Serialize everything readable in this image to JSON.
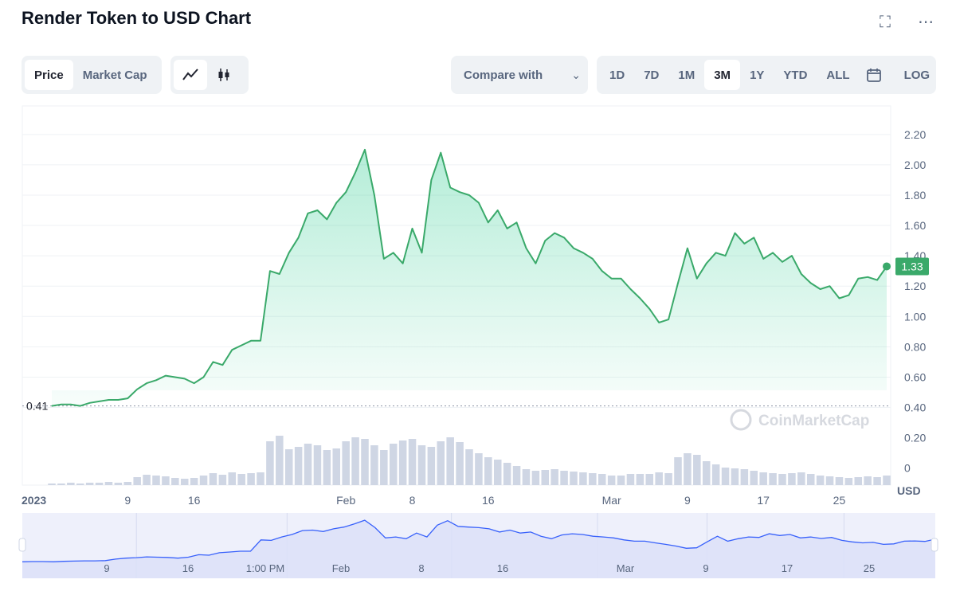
{
  "title": "Render Token to USD Chart",
  "icons": {
    "fullscreen": "fullscreen-icon",
    "more": "more-horizontal-icon"
  },
  "toolbar": {
    "metric_tabs": [
      "Price",
      "Market Cap"
    ],
    "metric_selected": "Price",
    "chart_style_icons": [
      "line-chart-icon",
      "candlestick-icon"
    ],
    "compare_label": "Compare with",
    "ranges": [
      "1D",
      "7D",
      "1M",
      "3M",
      "1Y",
      "YTD",
      "ALL"
    ],
    "range_selected": "3M",
    "calendar_icon": "calendar-icon",
    "log_label": "LOG"
  },
  "colors": {
    "line": "#16c784",
    "line_dark": "#3aa96a",
    "volume": "#cfd6e4",
    "brush_fill": "#dde1f8",
    "brush_line": "#3861fb",
    "current_badge": "#3aa96a"
  },
  "watermark": "CoinMarketCap",
  "chart_data": {
    "type": "line",
    "title": "",
    "xlabel": "",
    "ylabel": "USD",
    "ylim": [
      0,
      2.3
    ],
    "yticks": [
      0.4,
      0.6,
      0.8,
      1.0,
      1.2,
      1.4,
      1.6,
      1.8,
      2.0,
      2.2
    ],
    "ytick_labels": [
      "0.40",
      "0.60",
      "0.80",
      "1.00",
      "1.20",
      "1.40",
      "1.60",
      "1.80",
      "2.00",
      "2.20"
    ],
    "volume_axis_labels": [
      "0.20",
      "0"
    ],
    "xtick_labels": [
      {
        "label": "2023",
        "day": 0
      },
      {
        "label": "9",
        "day": 8
      },
      {
        "label": "16",
        "day": 15
      },
      {
        "label": "Feb",
        "day": 31
      },
      {
        "label": "8",
        "day": 38
      },
      {
        "label": "16",
        "day": 46
      },
      {
        "label": "Mar",
        "day": 59
      },
      {
        "label": "9",
        "day": 67
      },
      {
        "label": "17",
        "day": 75
      },
      {
        "label": "25",
        "day": 83
      }
    ],
    "start_price_label": "0.41",
    "current_price_label": "1.33",
    "series": [
      {
        "x": [
          0,
          1,
          2,
          3,
          4,
          5,
          6,
          7,
          8,
          9,
          10,
          11,
          12,
          13,
          14,
          15,
          16,
          17,
          18,
          19,
          20,
          21,
          22,
          23,
          24,
          25,
          26,
          27,
          28,
          29,
          30,
          31,
          32,
          33,
          34,
          35,
          36,
          37,
          38,
          39,
          40,
          41,
          42,
          43,
          44,
          45,
          46,
          47,
          48,
          49,
          50,
          51,
          52,
          53,
          54,
          55,
          56,
          57,
          58,
          59,
          60,
          61,
          62,
          63,
          64,
          65,
          66,
          67,
          68,
          69,
          70,
          71,
          72,
          73,
          74,
          75,
          76,
          77,
          78,
          79,
          80,
          81,
          82,
          83,
          84,
          85,
          86,
          87,
          88
        ],
        "values": [
          0.41,
          0.42,
          0.42,
          0.41,
          0.43,
          0.44,
          0.45,
          0.45,
          0.46,
          0.52,
          0.56,
          0.58,
          0.61,
          0.6,
          0.59,
          0.56,
          0.6,
          0.7,
          0.68,
          0.78,
          0.81,
          0.84,
          0.84,
          1.3,
          1.28,
          1.42,
          1.52,
          1.68,
          1.7,
          1.64,
          1.75,
          1.82,
          1.95,
          2.1,
          1.8,
          1.38,
          1.42,
          1.35,
          1.58,
          1.42,
          1.9,
          2.08,
          1.85,
          1.82,
          1.8,
          1.75,
          1.62,
          1.7,
          1.58,
          1.62,
          1.45,
          1.35,
          1.5,
          1.55,
          1.52,
          1.45,
          1.42,
          1.38,
          1.3,
          1.25,
          1.25,
          1.18,
          1.12,
          1.05,
          0.96,
          0.98,
          1.22,
          1.45,
          1.25,
          1.35,
          1.42,
          1.4,
          1.55,
          1.48,
          1.52,
          1.38,
          1.42,
          1.36,
          1.4,
          1.28,
          1.22,
          1.18,
          1.2,
          1.12,
          1.14,
          1.25,
          1.26,
          1.24,
          1.33
        ]
      }
    ],
    "volume": [
      2,
      2,
      3,
      2,
      3,
      3,
      4,
      3,
      4,
      10,
      13,
      12,
      11,
      9,
      8,
      9,
      12,
      15,
      13,
      16,
      14,
      15,
      16,
      55,
      62,
      45,
      48,
      52,
      50,
      44,
      46,
      55,
      60,
      58,
      50,
      44,
      52,
      56,
      58,
      50,
      48,
      55,
      60,
      54,
      45,
      40,
      35,
      32,
      28,
      24,
      20,
      18,
      19,
      20,
      18,
      17,
      16,
      15,
      14,
      12,
      12,
      14,
      14,
      14,
      16,
      15,
      35,
      40,
      38,
      30,
      26,
      22,
      21,
      20,
      18,
      16,
      15,
      14,
      15,
      16,
      14,
      12,
      11,
      10,
      9,
      10,
      11,
      10,
      12
    ],
    "brush_x_labels": [
      "9",
      "16",
      "1:00 PM",
      "Feb",
      "8",
      "16",
      "Mar",
      "9",
      "17",
      "25"
    ]
  }
}
